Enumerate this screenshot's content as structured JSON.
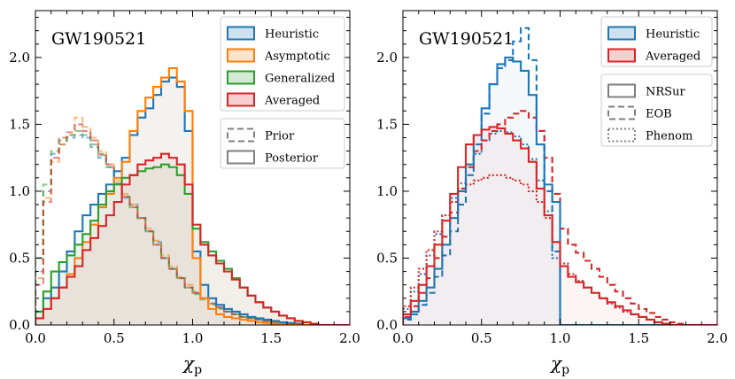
{
  "chart_data": [
    {
      "type": "histogram",
      "title": "GW190521",
      "xlabel": "χ",
      "xlabel_sub": "p",
      "ylabel": "",
      "xlim": [
        0.0,
        2.0
      ],
      "ylim": [
        0.0,
        2.35
      ],
      "xticks": [
        "0.0",
        "0.5",
        "1.0",
        "1.5",
        "2.0"
      ],
      "yticks": [
        "0.0",
        "0.5",
        "1.0",
        "1.5",
        "2.0"
      ],
      "bin_width": 0.05,
      "series": [
        {
          "name": "Heuristic",
          "kind": "posterior",
          "color": "#1f77b4",
          "style": "solid",
          "values": [
            0.1,
            0.2,
            0.28,
            0.4,
            0.55,
            0.7,
            0.82,
            0.9,
            0.98,
            1.05,
            1.15,
            1.25,
            1.42,
            1.55,
            1.62,
            1.72,
            1.82,
            1.85,
            1.78,
            1.45,
            0.55,
            0.3,
            0.2,
            0.15,
            0.12,
            0.1,
            0.08,
            0.06,
            0.05,
            0.04,
            0.03,
            0.02,
            0.015,
            0.01,
            0.0,
            0.0,
            0.0,
            0.0,
            0.0,
            0.0
          ]
        },
        {
          "name": "Asymptotic",
          "kind": "posterior",
          "color": "#ff7f0e",
          "style": "solid",
          "values": [
            0.05,
            0.12,
            0.2,
            0.28,
            0.38,
            0.5,
            0.62,
            0.75,
            0.88,
            0.98,
            1.1,
            1.22,
            1.45,
            1.6,
            1.7,
            1.78,
            1.85,
            1.92,
            1.82,
            1.6,
            0.5,
            0.2,
            0.12,
            0.08,
            0.06,
            0.05,
            0.04,
            0.03,
            0.02,
            0.015,
            0.01,
            0.005,
            0.0,
            0.0,
            0.0,
            0.0,
            0.0,
            0.0,
            0.0,
            0.0
          ]
        },
        {
          "name": "Generalized",
          "kind": "posterior",
          "color": "#2ca02c",
          "style": "solid",
          "values": [
            0.1,
            0.25,
            0.4,
            0.47,
            0.52,
            0.6,
            0.68,
            0.78,
            0.9,
            1.0,
            1.05,
            1.1,
            1.12,
            1.15,
            1.17,
            1.18,
            1.2,
            1.18,
            1.12,
            0.98,
            0.72,
            0.62,
            0.55,
            0.48,
            0.42,
            0.35,
            0.28,
            0.22,
            0.17,
            0.13,
            0.1,
            0.07,
            0.05,
            0.03,
            0.02,
            0.01,
            0.0,
            0.0,
            0.0,
            0.0
          ]
        },
        {
          "name": "Averaged",
          "kind": "posterior",
          "color": "#d62728",
          "style": "solid",
          "values": [
            0.05,
            0.12,
            0.2,
            0.28,
            0.36,
            0.44,
            0.56,
            0.65,
            0.74,
            0.82,
            0.92,
            1.05,
            1.12,
            1.2,
            1.23,
            1.25,
            1.28,
            1.25,
            1.2,
            1.05,
            0.75,
            0.6,
            0.52,
            0.46,
            0.4,
            0.34,
            0.28,
            0.22,
            0.17,
            0.13,
            0.1,
            0.07,
            0.05,
            0.03,
            0.02,
            0.01,
            0.0,
            0.0,
            0.0,
            0.0
          ]
        },
        {
          "name": "Heuristic",
          "kind": "prior",
          "color": "#1f77b4",
          "style": "dashed",
          "values": [
            0.4,
            1.0,
            1.28,
            1.35,
            1.4,
            1.42,
            1.4,
            1.33,
            1.25,
            1.18,
            1.05,
            0.95,
            0.9,
            0.8,
            0.7,
            0.62,
            0.5,
            0.42,
            0.35,
            0.28,
            0.24,
            0.2,
            0.16,
            0.13,
            0.1,
            0.08,
            0.06,
            0.05,
            0.04,
            0.03,
            0.02,
            0.015,
            0.01,
            0.005,
            0.0,
            0.0,
            0.0,
            0.0,
            0.0,
            0.0
          ]
        },
        {
          "name": "Asymptotic",
          "kind": "prior",
          "color": "#ff7f0e",
          "style": "dashed",
          "values": [
            0.35,
            0.95,
            1.22,
            1.35,
            1.42,
            1.55,
            1.48,
            1.4,
            1.3,
            1.2,
            1.08,
            0.98,
            0.9,
            0.8,
            0.72,
            0.63,
            0.52,
            0.44,
            0.36,
            0.3,
            0.25,
            0.2,
            0.16,
            0.13,
            0.1,
            0.08,
            0.06,
            0.05,
            0.04,
            0.03,
            0.02,
            0.015,
            0.01,
            0.005,
            0.0,
            0.0,
            0.0,
            0.0,
            0.0,
            0.0
          ]
        },
        {
          "name": "Generalized",
          "kind": "prior",
          "color": "#2ca02c",
          "style": "dashed",
          "values": [
            0.5,
            1.05,
            1.3,
            1.38,
            1.42,
            1.45,
            1.42,
            1.35,
            1.27,
            1.18,
            1.06,
            0.96,
            0.88,
            0.8,
            0.7,
            0.6,
            0.5,
            0.42,
            0.35,
            0.28,
            0.23,
            0.19,
            0.15,
            0.12,
            0.1,
            0.08,
            0.06,
            0.05,
            0.04,
            0.03,
            0.02,
            0.015,
            0.01,
            0.005,
            0.0,
            0.0,
            0.0,
            0.0,
            0.0,
            0.0
          ]
        },
        {
          "name": "Averaged",
          "kind": "prior",
          "color": "#d62728",
          "style": "dashed",
          "values": [
            0.3,
            0.92,
            1.25,
            1.4,
            1.44,
            1.5,
            1.45,
            1.38,
            1.28,
            1.2,
            1.06,
            0.96,
            0.88,
            0.8,
            0.7,
            0.6,
            0.5,
            0.42,
            0.35,
            0.28,
            0.24,
            0.2,
            0.16,
            0.13,
            0.1,
            0.08,
            0.06,
            0.05,
            0.04,
            0.03,
            0.02,
            0.015,
            0.01,
            0.005,
            0.0,
            0.0,
            0.0,
            0.0,
            0.0,
            0.0
          ]
        }
      ],
      "legend": {
        "entries": [
          {
            "label": "Heuristic",
            "color": "#1f77b4"
          },
          {
            "label": "Asymptotic",
            "color": "#ff7f0e"
          },
          {
            "label": "Generalized",
            "color": "#2ca02c"
          },
          {
            "label": "Averaged",
            "color": "#d62728"
          }
        ],
        "style_entries": [
          {
            "label": "Prior",
            "style": "dashed"
          },
          {
            "label": "Posterior",
            "style": "solid"
          }
        ]
      }
    },
    {
      "type": "histogram",
      "title": "GW190521",
      "xlabel": "χ",
      "xlabel_sub": "p",
      "ylabel": "",
      "xlim": [
        0.0,
        2.0
      ],
      "ylim": [
        0.0,
        2.35
      ],
      "xticks": [
        "0.0",
        "0.5",
        "1.0",
        "1.5",
        "2.0"
      ],
      "yticks": [
        "0.0",
        "0.5",
        "1.0",
        "1.5",
        "2.0"
      ],
      "bin_width": 0.05,
      "series": [
        {
          "name": "Heuristic",
          "model": "NRSur",
          "color": "#1f77b4",
          "style": "solid",
          "values": [
            0.05,
            0.1,
            0.18,
            0.28,
            0.42,
            0.6,
            0.8,
            1.0,
            1.2,
            1.42,
            1.62,
            1.8,
            1.95,
            2.0,
            1.97,
            1.9,
            1.72,
            1.35,
            1.05,
            0.92,
            0.0,
            0.0,
            0.0,
            0.0,
            0.0,
            0.0,
            0.0,
            0.0,
            0.0,
            0.0,
            0.0,
            0.0,
            0.0,
            0.0,
            0.0,
            0.0,
            0.0,
            0.0,
            0.0,
            0.0
          ]
        },
        {
          "name": "Heuristic",
          "model": "EOB",
          "color": "#1f77b4",
          "style": "dashed",
          "values": [
            0.04,
            0.08,
            0.15,
            0.24,
            0.36,
            0.52,
            0.7,
            0.9,
            1.12,
            1.35,
            1.58,
            1.8,
            1.92,
            1.98,
            2.12,
            2.22,
            1.98,
            1.45,
            1.0,
            0.55,
            0.0,
            0.0,
            0.0,
            0.0,
            0.0,
            0.0,
            0.0,
            0.0,
            0.0,
            0.0,
            0.0,
            0.0,
            0.0,
            0.0,
            0.0,
            0.0,
            0.0,
            0.0,
            0.0,
            0.0
          ]
        },
        {
          "name": "Heuristic",
          "model": "Phenom",
          "color": "#1f77b4",
          "style": "dotted",
          "values": [
            0.12,
            0.25,
            0.38,
            0.52,
            0.68,
            0.82,
            0.95,
            1.06,
            1.18,
            1.28,
            1.38,
            1.43,
            1.45,
            1.44,
            1.41,
            1.35,
            1.24,
            1.08,
            0.85,
            0.5,
            0.0,
            0.0,
            0.0,
            0.0,
            0.0,
            0.0,
            0.0,
            0.0,
            0.0,
            0.0,
            0.0,
            0.0,
            0.0,
            0.0,
            0.0,
            0.0,
            0.0,
            0.0,
            0.0,
            0.0
          ]
        },
        {
          "name": "Averaged",
          "model": "NRSur",
          "color": "#d62728",
          "style": "solid",
          "values": [
            0.08,
            0.18,
            0.3,
            0.44,
            0.6,
            0.78,
            0.98,
            1.18,
            1.35,
            1.42,
            1.46,
            1.48,
            1.47,
            1.43,
            1.38,
            1.32,
            1.22,
            1.02,
            0.82,
            0.62,
            0.44,
            0.36,
            0.32,
            0.28,
            0.24,
            0.2,
            0.17,
            0.14,
            0.11,
            0.08,
            0.06,
            0.04,
            0.02,
            0.01,
            0.0,
            0.0,
            0.0,
            0.0,
            0.0,
            0.0
          ]
        },
        {
          "name": "Averaged",
          "model": "EOB",
          "color": "#d62728",
          "style": "dashed",
          "values": [
            0.06,
            0.14,
            0.24,
            0.35,
            0.5,
            0.66,
            0.84,
            1.02,
            1.18,
            1.3,
            1.38,
            1.45,
            1.5,
            1.55,
            1.58,
            1.6,
            1.55,
            1.45,
            1.25,
            0.98,
            0.72,
            0.6,
            0.54,
            0.48,
            0.42,
            0.36,
            0.3,
            0.25,
            0.2,
            0.16,
            0.12,
            0.09,
            0.06,
            0.04,
            0.02,
            0.01,
            0.0,
            0.0,
            0.0,
            0.0
          ]
        },
        {
          "name": "Averaged",
          "model": "Phenom",
          "color": "#d62728",
          "style": "dotted",
          "values": [
            0.14,
            0.28,
            0.42,
            0.56,
            0.7,
            0.82,
            0.92,
            1.0,
            1.05,
            1.08,
            1.1,
            1.12,
            1.12,
            1.1,
            1.08,
            1.05,
            1.0,
            0.92,
            0.8,
            0.62,
            0.46,
            0.38,
            0.33,
            0.28,
            0.24,
            0.2,
            0.16,
            0.13,
            0.1,
            0.08,
            0.06,
            0.04,
            0.02,
            0.01,
            0.0,
            0.0,
            0.0,
            0.0,
            0.0,
            0.0
          ]
        }
      ],
      "legend": {
        "entries": [
          {
            "label": "Heuristic",
            "color": "#1f77b4"
          },
          {
            "label": "Averaged",
            "color": "#d62728"
          }
        ],
        "style_entries": [
          {
            "label": "NRSur",
            "style": "solid"
          },
          {
            "label": "EOB",
            "style": "dashed"
          },
          {
            "label": "Phenom",
            "style": "dotted"
          }
        ]
      }
    }
  ]
}
